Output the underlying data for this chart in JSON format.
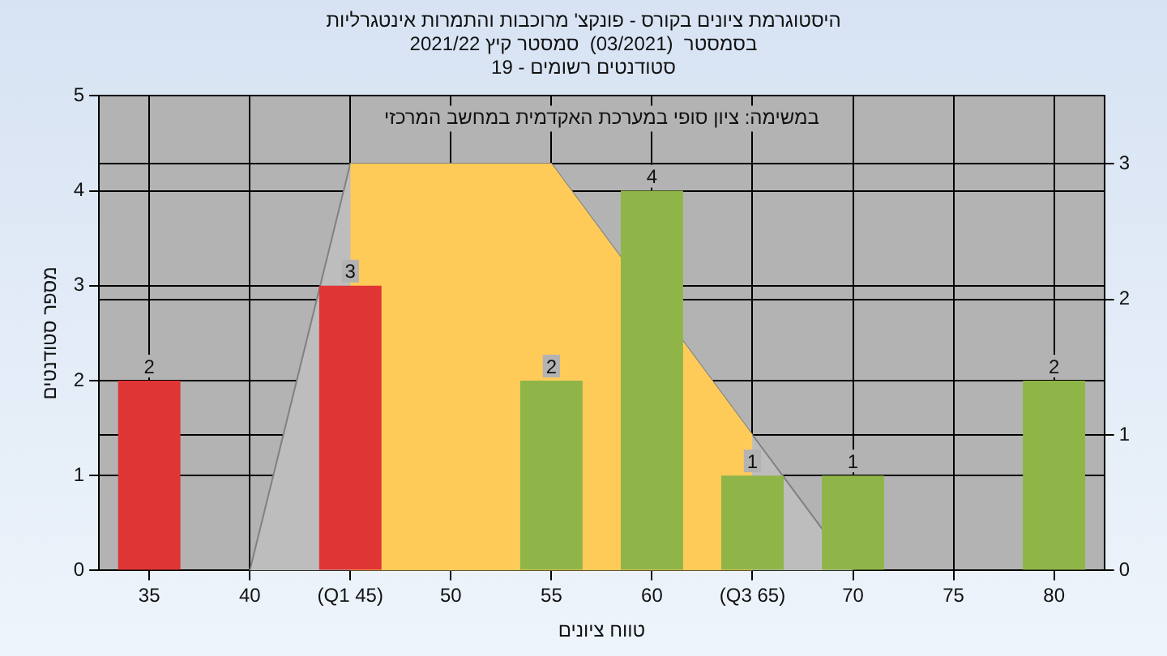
{
  "chart_data": {
    "type": "bar",
    "title": "היסטוגרמת ציונים בקורס - פונקצ' מרוכבות והתמרות אינטגרליות",
    "subtitle": "בסמסטר  (03/2021)  סמסטר קיץ 2021/22\nסטודנטים רשומים - 19",
    "xlabel": "טווח ציונים",
    "ylabel": "מספר סטודנטים",
    "annotations": [
      "במשימה: ציון סופי במערכת האקדמית במחשב המרכזי"
    ],
    "categories": [
      "35",
      "40",
      "(Q1 45)",
      "50",
      "55",
      "60",
      "(Q3 65)",
      "70",
      "75",
      "80"
    ],
    "series": [
      {
        "colors": [
          "#e03535",
          "#8fb548",
          "#e03535",
          "#8fb548",
          "#8fb548",
          "#8fb548",
          "#8fb548",
          "#8fb548",
          "#8fb548",
          "#8fb548"
        ],
        "values": [
          2,
          0,
          3,
          0,
          2,
          4,
          1,
          1,
          0,
          2
        ],
        "value_labels": [
          "2",
          null,
          "3",
          null,
          "2",
          "4",
          "1",
          "1",
          null,
          "2"
        ]
      },
      {
        "type": "area",
        "axis": "y2",
        "color": "#bdbdbd",
        "values": [
          null,
          0,
          3,
          3,
          3,
          null,
          1,
          0,
          null,
          null
        ]
      },
      {
        "type": "area",
        "axis": "y2",
        "color": "#fecb59",
        "values": [
          null,
          null,
          3,
          3,
          3,
          null,
          1,
          null,
          null,
          null
        ]
      }
    ],
    "ylim": [
      0,
      5
    ],
    "yticks": [
      0,
      1,
      2,
      3,
      4,
      5
    ],
    "y2lim": [
      0,
      3.5
    ],
    "y2ticks": [
      0,
      1,
      2,
      3
    ],
    "grid": true,
    "legend": false
  }
}
